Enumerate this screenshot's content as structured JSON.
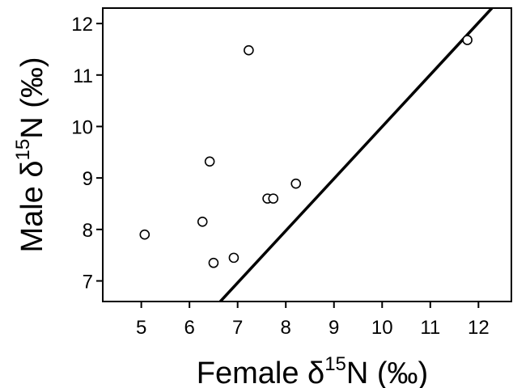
{
  "chart_data": {
    "type": "scatter",
    "title": "",
    "xlabel": {
      "prefix": "Female δ",
      "superscript": "15",
      "suffix": "N (‰)"
    },
    "ylabel": {
      "prefix": "Male δ",
      "superscript": "15",
      "suffix": "N (‰)"
    },
    "xlim": [
      4.2,
      12.7
    ],
    "ylim": [
      6.6,
      12.3
    ],
    "xticks": [
      "5",
      "6",
      "7",
      "8",
      "9",
      "10",
      "11",
      "12"
    ],
    "yticks": [
      "7",
      "8",
      "9",
      "10",
      "11",
      "12"
    ],
    "grid": false,
    "points": [
      {
        "x": 5.07,
        "y": 7.9
      },
      {
        "x": 6.27,
        "y": 8.15
      },
      {
        "x": 6.42,
        "y": 9.32
      },
      {
        "x": 6.5,
        "y": 7.35
      },
      {
        "x": 6.92,
        "y": 7.45
      },
      {
        "x": 7.23,
        "y": 11.48
      },
      {
        "x": 7.62,
        "y": 8.6
      },
      {
        "x": 7.74,
        "y": 8.6
      },
      {
        "x": 8.21,
        "y": 8.89
      },
      {
        "x": 11.77,
        "y": 11.68
      }
    ],
    "line": {
      "x": [
        6.64,
        12.28
      ],
      "y": [
        6.6,
        12.3
      ]
    }
  }
}
